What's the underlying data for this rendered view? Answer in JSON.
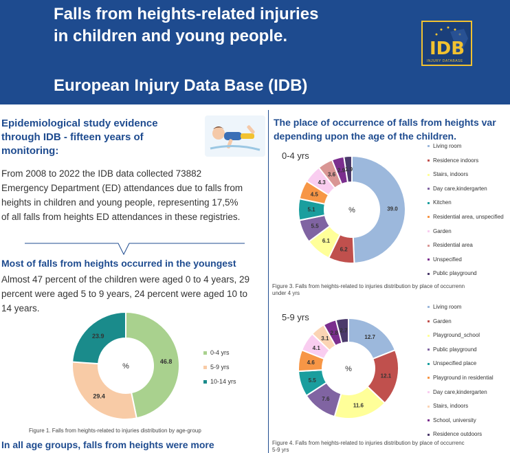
{
  "header": {
    "title_line1": "Falls from heights-related injuries",
    "title_line2": "in children and young people.",
    "subtitle": "European Injury Data Base (IDB)",
    "logo_text": "IDB",
    "logo_subtext": "INJURY DATABASE"
  },
  "left": {
    "section1_title_line1": "Epidemiological  study  evidence",
    "section1_title_line2": "through  IDB   -  fifteen  years  of",
    "section1_title_line3": "monitoring:",
    "para1_line1": "From  2008  to  2022  the  IDB  data  collected  73882",
    "para1_line2": "Emergency Department (ED) attendances due to falls from",
    "para1_line3": "heights in children and young people, representing 17,5%",
    "para1_line4": "of all falls from heights ED attendances in these registries.",
    "section2_title": "Most of falls from heights occurred in the youngest",
    "para2_line1": "Almost 47 percent of the children were aged 0 to 4 years, 29",
    "para2_line2": "percent were aged 5 to 9 years, 24 percent were aged 10 to",
    "para2_line3": "14 years.",
    "figure1_caption": "Figure 1. Falls from heights-related to injuries distribution by age-group",
    "section3_title": "In all age groups, falls from heights were more"
  },
  "right": {
    "title_line1": "The place of occurrence of falls from heights var",
    "title_line2": "depending upon the age of the children.",
    "label_04": "0-4 yrs",
    "label_59": "5-9 yrs",
    "figure3_caption_line1": "Figure 3. Falls from heights-related to injuries distribution by place of occurrenn",
    "figure3_caption_line2": "under 4 yrs",
    "figure4_caption_line1": "Figure 4. Falls from heights-related to injuries distribution by place of occurrenc",
    "figure4_caption_line2": "5-9 yrs"
  },
  "colors": {
    "header_bg": "#1e4b8f",
    "accent_title": "#1e4b8f",
    "logo_gold": "#f2c230"
  },
  "chart_data": [
    {
      "type": "pie",
      "center_label": "%",
      "categories": [
        "0-4 yrs",
        "5-9 yrs",
        "10-14 yrs"
      ],
      "values": [
        46.8,
        29.4,
        23.9
      ],
      "colors": [
        "#a9d18e",
        "#f8cba6",
        "#1a8b8b"
      ],
      "legend_position": "right"
    },
    {
      "type": "pie",
      "center_label": "%",
      "categories": [
        "Living room",
        "Residence indoors",
        "Stairs, indoors",
        "Day care,kindergarten",
        "Kitchen",
        "Residential area, unspecified",
        "Garden",
        "Residential area",
        "Unspecified",
        "Public playground"
      ],
      "values": [
        39.0,
        6.2,
        6.1,
        5.5,
        5.1,
        4.5,
        4.3,
        3.6,
        2.9,
        1.9
      ],
      "colors": [
        "#9cb8dc",
        "#c0504d",
        "#ffff99",
        "#8064a2",
        "#1a9e9e",
        "#f79646",
        "#f9cdf0",
        "#d99694",
        "#7b2e8e",
        "#4b3a6b"
      ],
      "legend_position": "right"
    },
    {
      "type": "pie",
      "center_label": "%",
      "categories": [
        "Living room",
        "Garden",
        "Playground_school",
        "Public playground",
        "Unspecified place",
        "Playground in residential",
        "Day care,kindergarten",
        "Stairs, indoors",
        "School, university",
        "Residence outdoors"
      ],
      "values": [
        12.7,
        12.1,
        11.6,
        7.6,
        5.5,
        4.6,
        4.1,
        3.1,
        2.8,
        2.7
      ],
      "colors": [
        "#9cb8dc",
        "#c0504d",
        "#ffff99",
        "#8064a2",
        "#1a9e9e",
        "#f79646",
        "#f9cdf0",
        "#fbd4b4",
        "#7b2e8e",
        "#4b3a6b"
      ],
      "legend_position": "right"
    }
  ]
}
